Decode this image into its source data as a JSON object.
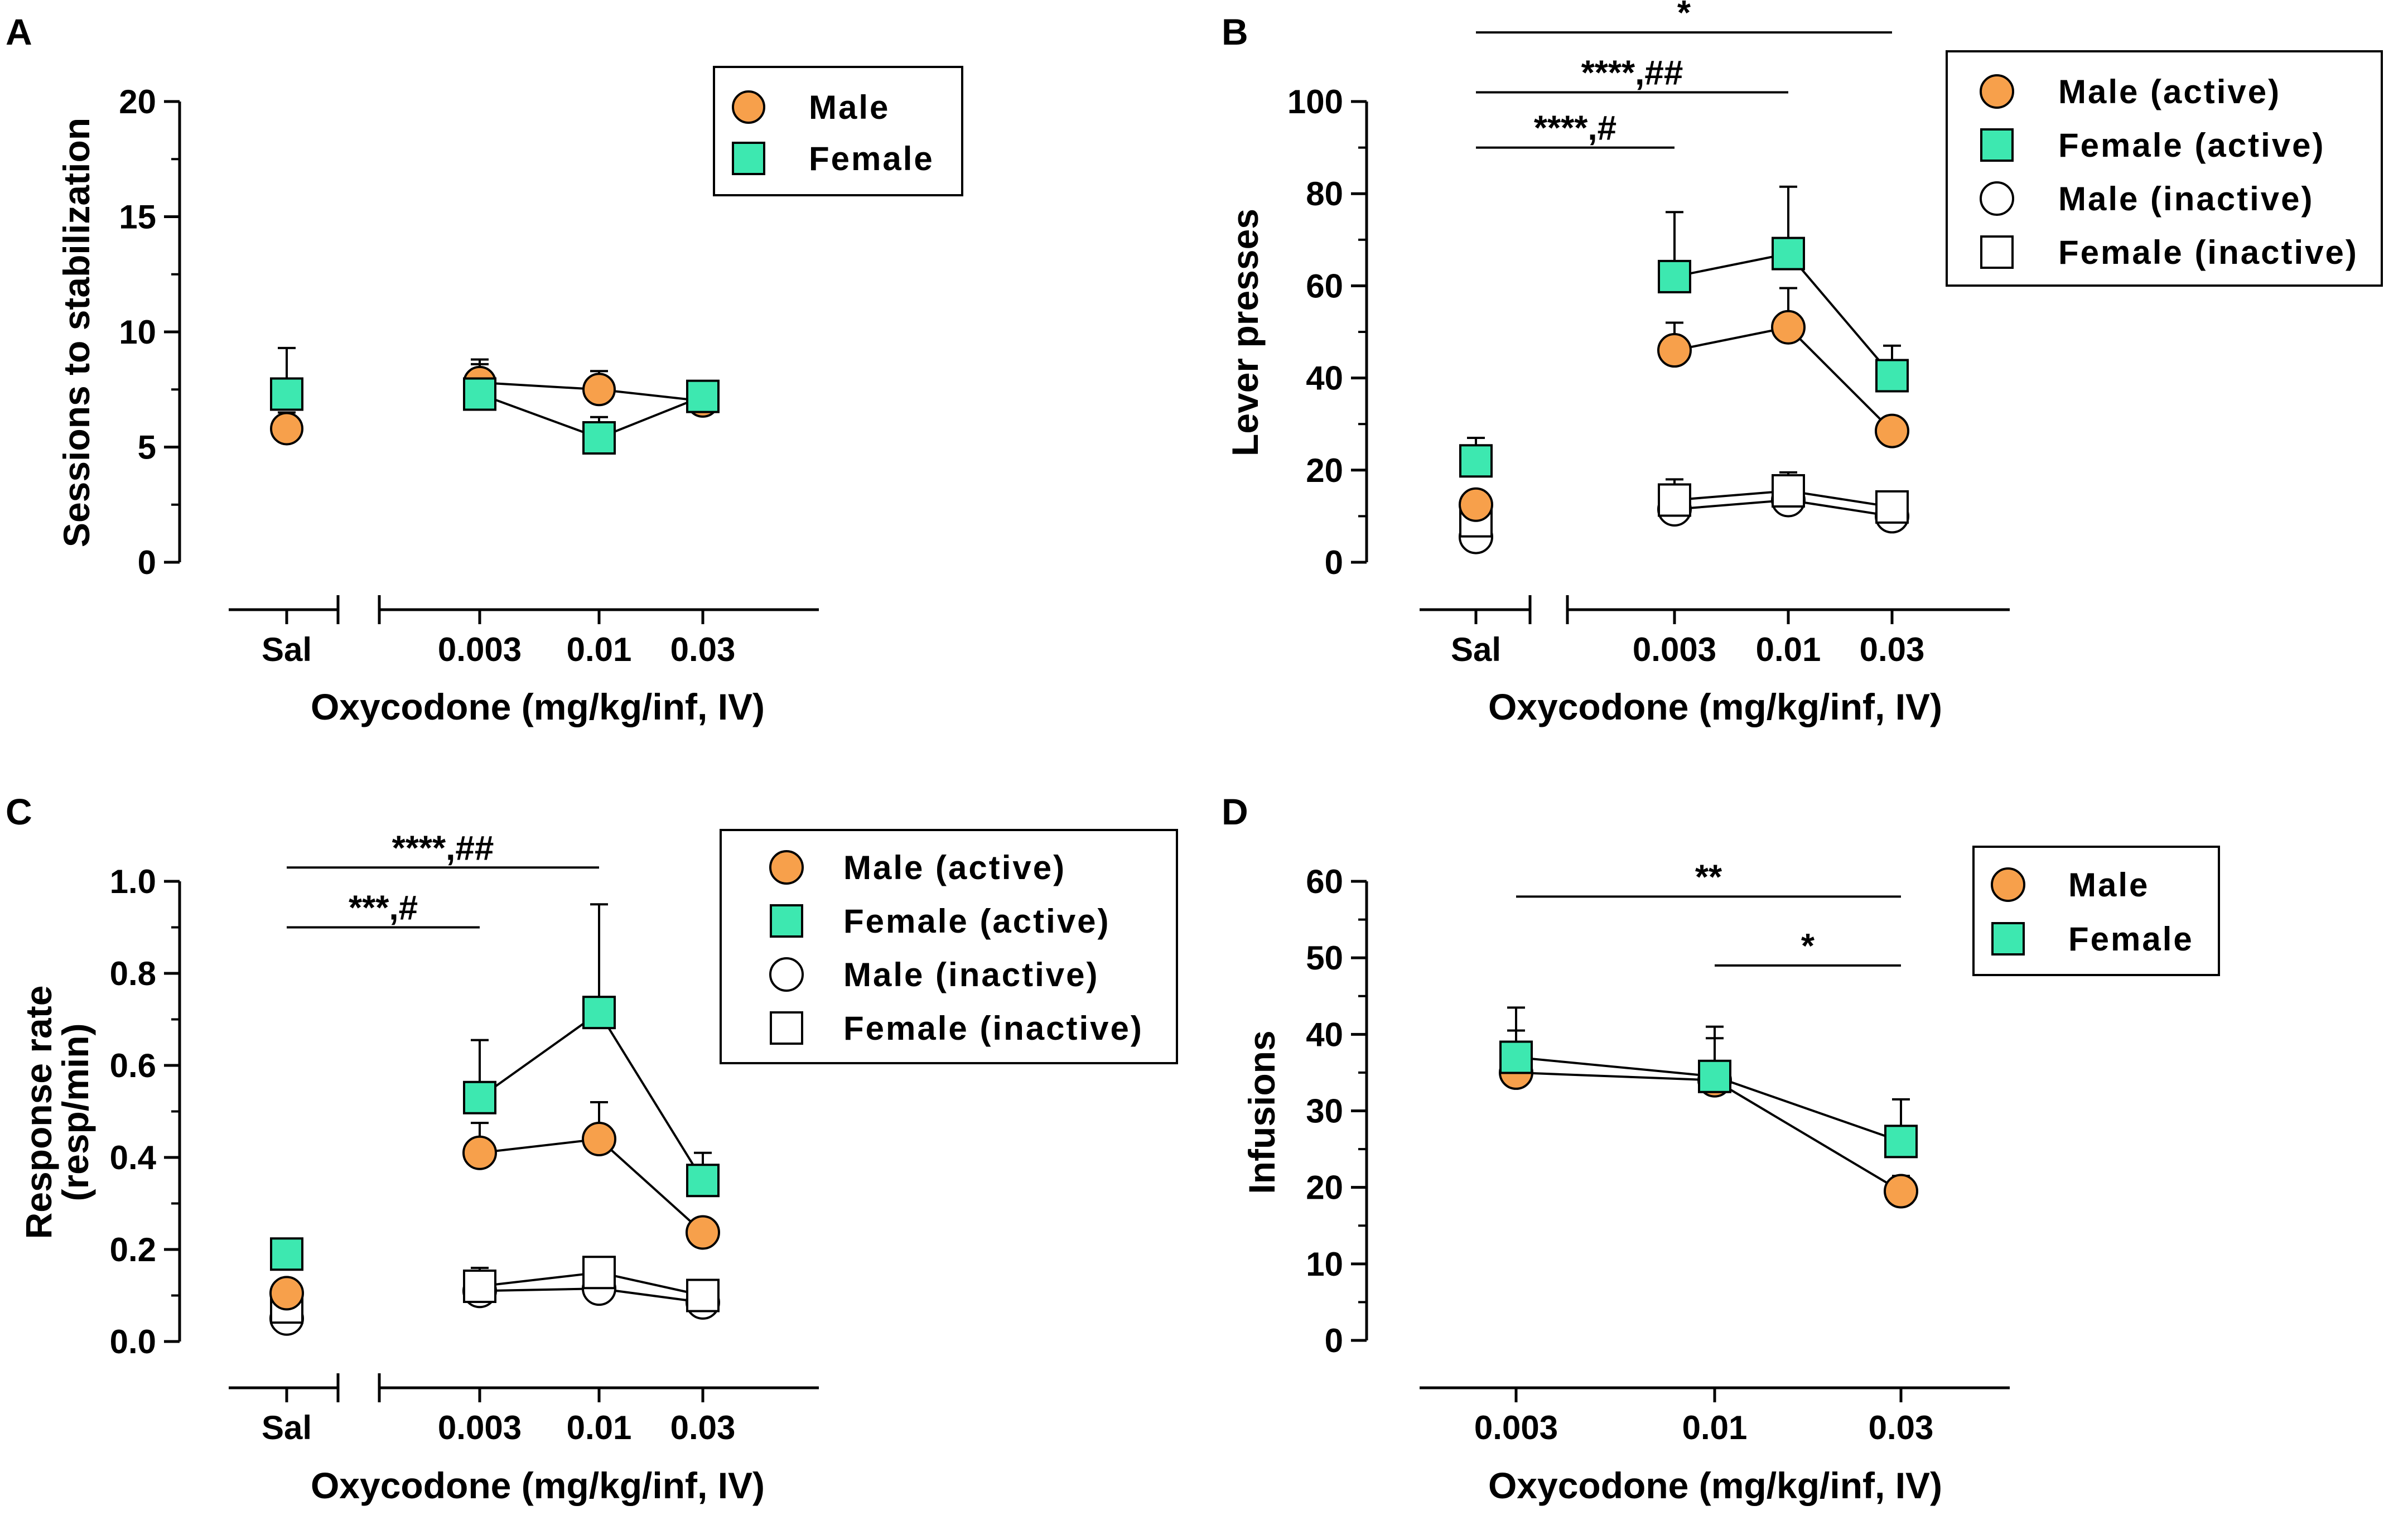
{
  "colors": {
    "male": "#F7A04B",
    "female": "#3DE8B0",
    "open": "#FFFFFF",
    "ink": "#000000"
  },
  "chart_data": [
    {
      "panel": "A",
      "type": "line",
      "ylabel": "Sessions to stabilization",
      "xlabel": "Oxycodone (mg/kg/inf, IV)",
      "ylim": [
        0,
        20
      ],
      "yticks": [
        "0",
        "5",
        "10",
        "15",
        "20"
      ],
      "categories": [
        "Sal",
        "0.003",
        "0.01",
        "0.03"
      ],
      "legend": [
        {
          "label": "Male",
          "marker": "circle",
          "fill": "#F7A04B"
        },
        {
          "label": "Female",
          "marker": "square",
          "fill": "#3DE8B0"
        }
      ],
      "series": [
        {
          "name": "Male",
          "marker": "circle",
          "fill": "#F7A04B",
          "values": [
            5.8,
            7.8,
            7.5,
            7.0
          ],
          "errors": [
            0.7,
            1.0,
            0.8,
            0.5
          ]
        },
        {
          "name": "Female",
          "marker": "square",
          "fill": "#3DE8B0",
          "values": [
            7.3,
            7.3,
            5.4,
            7.2
          ],
          "errors": [
            2.0,
            1.3,
            0.9,
            0.6
          ]
        }
      ],
      "annotations": []
    },
    {
      "panel": "B",
      "type": "line",
      "ylabel": "Lever presses",
      "xlabel": "Oxycodone (mg/kg/inf, IV)",
      "ylim": [
        0,
        100
      ],
      "yticks": [
        "0",
        "20",
        "40",
        "60",
        "80",
        "100"
      ],
      "categories": [
        "Sal",
        "0.003",
        "0.01",
        "0.03"
      ],
      "legend": [
        {
          "label": "Male (active)",
          "marker": "circle",
          "fill": "#F7A04B"
        },
        {
          "label": "Female (active)",
          "marker": "square",
          "fill": "#3DE8B0"
        },
        {
          "label": "Male (inactive)",
          "marker": "circle",
          "fill": "#FFFFFF"
        },
        {
          "label": "Female  (inactive)",
          "marker": "square",
          "fill": "#FFFFFF"
        }
      ],
      "series": [
        {
          "name": "Male (inactive)",
          "marker": "circle",
          "fill": "#FFFFFF",
          "values": [
            5.5,
            11.5,
            13.5,
            10
          ],
          "errors": [
            1.5,
            3,
            3.5,
            2
          ]
        },
        {
          "name": "Female  (inactive)",
          "marker": "square",
          "fill": "#FFFFFF",
          "values": [
            9,
            13.5,
            15.5,
            12
          ],
          "errors": [
            2.5,
            4.5,
            4,
            2
          ]
        },
        {
          "name": "Male (active)",
          "marker": "circle",
          "fill": "#F7A04B",
          "values": [
            12.5,
            46,
            51,
            28.5
          ],
          "errors": [
            3,
            6,
            8.5,
            2
          ]
        },
        {
          "name": "Female (active)",
          "marker": "square",
          "fill": "#3DE8B0",
          "values": [
            22,
            62,
            67,
            40.5
          ],
          "errors": [
            5,
            14,
            14.5,
            6.5
          ]
        }
      ],
      "annotations": [
        {
          "text": "*",
          "from": "Sal",
          "to": "0.03",
          "y": 115
        },
        {
          "text": "****,##",
          "from": "Sal",
          "to": "0.01",
          "y": 102
        },
        {
          "text": "****,#",
          "from": "Sal",
          "to": "0.003",
          "y": 90
        }
      ]
    },
    {
      "panel": "C",
      "type": "line",
      "ylabel": "Response rate",
      "ylabel2": "(resp/min)",
      "xlabel": "Oxycodone (mg/kg/inf, IV)",
      "ylim": [
        0,
        1.0
      ],
      "yticks": [
        "0.0",
        "0.2",
        "0.4",
        "0.6",
        "0.8",
        "1.0"
      ],
      "categories": [
        "Sal",
        "0.003",
        "0.01",
        "0.03"
      ],
      "legend": [
        {
          "label": "Male (active)",
          "marker": "circle",
          "fill": "#F7A04B"
        },
        {
          "label": "Female (active)",
          "marker": "square",
          "fill": "#3DE8B0"
        },
        {
          "label": "Male (inactive)",
          "marker": "circle",
          "fill": "#FFFFFF"
        },
        {
          "label": "Female (inactive)",
          "marker": "square",
          "fill": "#FFFFFF"
        }
      ],
      "series": [
        {
          "name": "Male (inactive)",
          "marker": "circle",
          "fill": "#FFFFFF",
          "values": [
            0.05,
            0.11,
            0.115,
            0.085
          ],
          "errors": [
            0.015,
            0.04,
            0.03,
            0.02
          ]
        },
        {
          "name": "Female (inactive)",
          "marker": "square",
          "fill": "#FFFFFF",
          "values": [
            0.075,
            0.12,
            0.15,
            0.1
          ],
          "errors": [
            0.02,
            0.04,
            0.03,
            0.02
          ]
        },
        {
          "name": "Male (active)",
          "marker": "circle",
          "fill": "#F7A04B",
          "values": [
            0.105,
            0.41,
            0.44,
            0.237
          ],
          "errors": [
            0.02,
            0.065,
            0.08,
            0.02
          ]
        },
        {
          "name": "Female (active)",
          "marker": "square",
          "fill": "#3DE8B0",
          "values": [
            0.19,
            0.53,
            0.715,
            0.35
          ],
          "errors": [
            0.02,
            0.125,
            0.235,
            0.06
          ]
        }
      ],
      "annotations": [
        {
          "text": "****,##",
          "from": "Sal",
          "to": "0.01",
          "y": 1.03
        },
        {
          "text": "***,#",
          "from": "Sal",
          "to": "0.003",
          "y": 0.9
        }
      ]
    },
    {
      "panel": "D",
      "type": "line",
      "ylabel": "Infusions",
      "xlabel": "Oxycodone (mg/kg/inf, IV)",
      "ylim": [
        0,
        60
      ],
      "yticks": [
        "0",
        "10",
        "20",
        "30",
        "40",
        "50",
        "60"
      ],
      "categories": [
        "0.003",
        "0.01",
        "0.03"
      ],
      "legend": [
        {
          "label": "Male",
          "marker": "circle",
          "fill": "#F7A04B"
        },
        {
          "label": "Female",
          "marker": "square",
          "fill": "#3DE8B0"
        }
      ],
      "series": [
        {
          "name": "Male",
          "marker": "circle",
          "fill": "#F7A04B",
          "values": [
            35,
            34,
            19.5
          ],
          "errors": [
            5.5,
            5.5,
            2
          ]
        },
        {
          "name": "Female",
          "marker": "square",
          "fill": "#3DE8B0",
          "values": [
            37,
            34.5,
            26
          ],
          "errors": [
            6.5,
            6.5,
            5.5
          ]
        }
      ],
      "annotations": [
        {
          "text": "**",
          "from": "0.003",
          "to": "0.03",
          "y": 58
        },
        {
          "text": "*",
          "from": "0.01",
          "to": "0.03",
          "y": 49
        }
      ]
    }
  ]
}
